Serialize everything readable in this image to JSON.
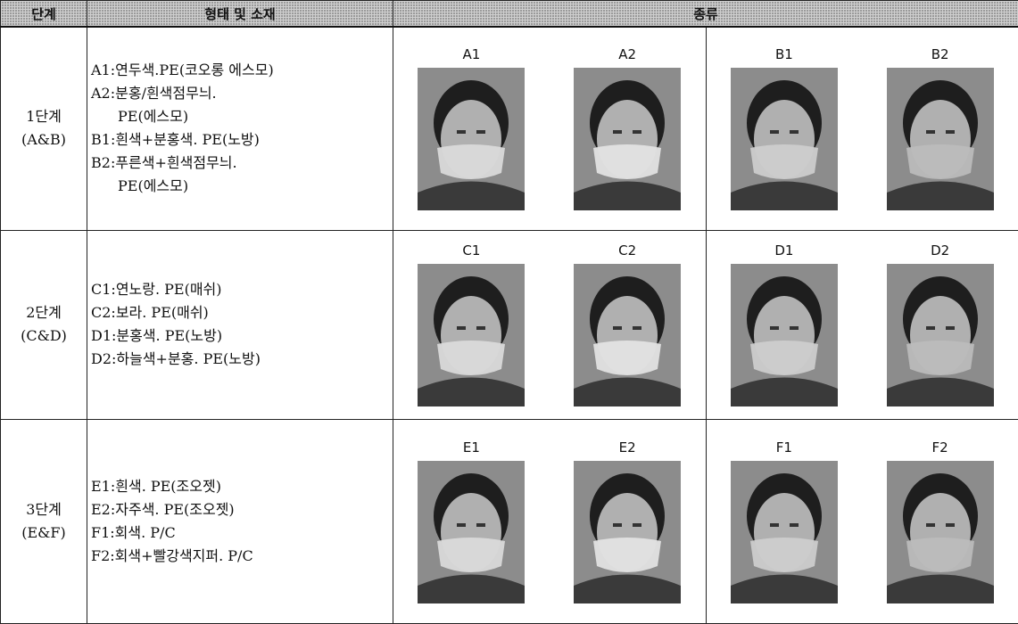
{
  "table": {
    "header": [
      "단계",
      "형태 및 소재",
      "종류"
    ],
    "rows": [
      {
        "stage": [
          "1단계",
          "(A&B)"
        ],
        "description": [
          [
            "A1:연두색.PE(코오롱 에스모)"
          ],
          [
            "A2:분홍/흰색점무늬.",
            "PE(에스모)"
          ],
          [
            "B1:흰색+분홍색. PE(노방)"
          ],
          [
            "B2:푸른색+흰색점무늬.",
            "PE(에스모)"
          ]
        ],
        "items": [
          "A1",
          "A2",
          "B1",
          "B2"
        ]
      },
      {
        "stage": [
          "2단계",
          "(C&D)"
        ],
        "description": [
          [
            "C1:연노랑. PE(매쉬)"
          ],
          [
            "C2:보라. PE(매쉬)"
          ],
          [
            "D1:분홍색. PE(노방)"
          ],
          [
            "D2:하늘색+분홍. PE(노방)"
          ]
        ],
        "items": [
          "C1",
          "C2",
          "D1",
          "D2"
        ]
      },
      {
        "stage": [
          "3단계",
          "(E&F)"
        ],
        "description": [
          [
            "E1:흰색. PE(조오젯)"
          ],
          [
            "E2:자주색. PE(조오젯)"
          ],
          [
            "F1:회색. P/C"
          ],
          [
            "F2:회색+빨강색지퍼. P/C"
          ]
        ],
        "items": [
          "E1",
          "E2",
          "F1",
          "F2"
        ]
      }
    ]
  }
}
